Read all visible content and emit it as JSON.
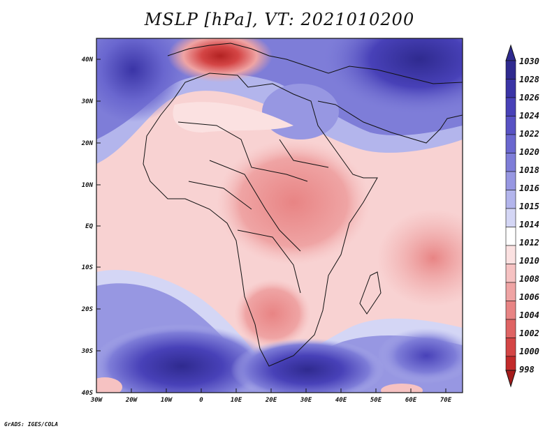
{
  "title": "MSLP [hPa], VT: 2021010200",
  "credit": "GrADS: IGES/COLA",
  "map": {
    "lon_range": [
      -30,
      75
    ],
    "lat_range": [
      -40,
      45
    ],
    "lat_ticks": [
      "40N",
      "30N",
      "20N",
      "10N",
      "EQ",
      "10S",
      "20S",
      "30S",
      "40S"
    ],
    "lon_ticks": [
      "30W",
      "20W",
      "10W",
      "0",
      "10E",
      "20E",
      "30E",
      "40E",
      "50E",
      "60E",
      "70E"
    ]
  },
  "colorbar": {
    "levels": [
      "1030",
      "1028",
      "1026",
      "1024",
      "1022",
      "1020",
      "1018",
      "1016",
      "1015",
      "1014",
      "1012",
      "1010",
      "1008",
      "1006",
      "1004",
      "1002",
      "1000",
      "998"
    ],
    "colors": [
      "#2f2a8f",
      "#3a34a6",
      "#4841b8",
      "#5852c4",
      "#6a67cf",
      "#7e7dd8",
      "#9797e2",
      "#b3b5ec",
      "#d4d6f5",
      "#ffffff",
      "#fbe1e1",
      "#f6c2c2",
      "#efa4a4",
      "#e88484",
      "#df6464",
      "#d44545",
      "#c22a2a",
      "#a51c1c"
    ]
  }
}
